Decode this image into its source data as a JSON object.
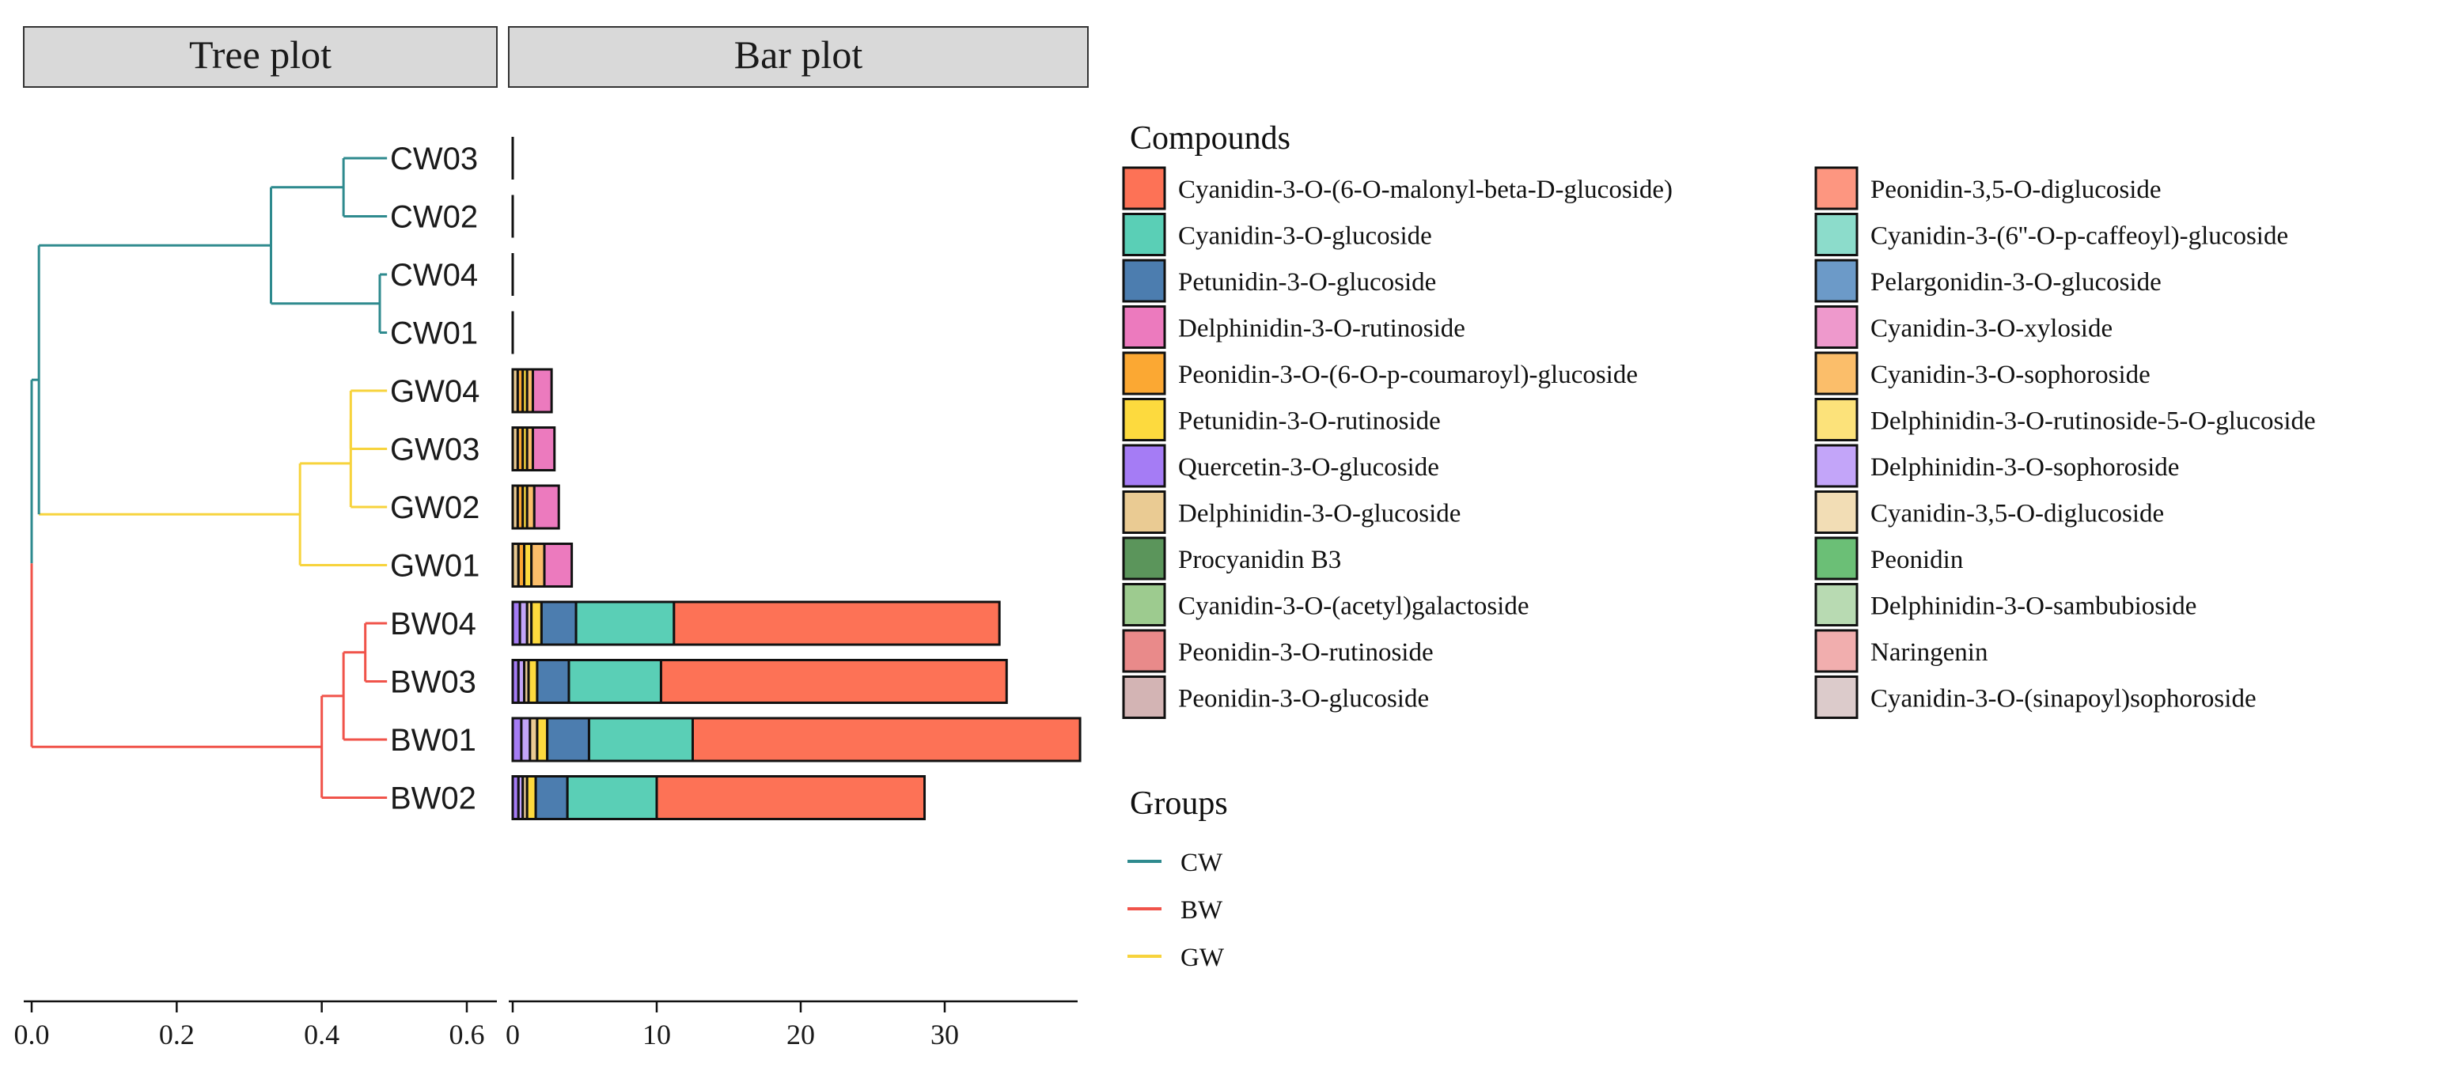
{
  "panels": {
    "tree_label": "Tree plot",
    "bar_label": "Bar plot"
  },
  "chart_data": [
    {
      "type": "dendrogram",
      "title": "Tree plot",
      "x_ticks": [
        "0.0",
        "0.2",
        "0.4",
        "0.6"
      ],
      "xlim": [
        0.0,
        0.62
      ],
      "leaves": [
        "CW03",
        "CW02",
        "CW04",
        "CW01",
        "GW04",
        "GW03",
        "GW02",
        "GW01",
        "BW04",
        "BW03",
        "BW01",
        "BW02"
      ],
      "leaf_x": 0.49,
      "leaf_groups": [
        "CW",
        "CW",
        "CW",
        "CW",
        "GW",
        "GW",
        "GW",
        "GW",
        "BW",
        "BW",
        "BW",
        "BW"
      ],
      "merges": [
        {
          "children": [
            "CW03",
            "CW02"
          ],
          "height": 0.43,
          "group": "CW"
        },
        {
          "children": [
            "CW04",
            "CW01"
          ],
          "height": 0.48,
          "group": "CW"
        },
        {
          "children": [
            "CW03+CW02",
            "CW04+CW01"
          ],
          "height": 0.33,
          "group": "CW"
        },
        {
          "children": [
            "GW04",
            "GW03"
          ],
          "height": 0.44,
          "group": "GW"
        },
        {
          "children": [
            "GW04+GW03",
            "GW02"
          ],
          "height": 0.44,
          "group": "GW"
        },
        {
          "children": [
            "GW04+GW03+GW02",
            "GW01"
          ],
          "height": 0.37,
          "group": "GW"
        },
        {
          "children": [
            "BW04",
            "BW03"
          ],
          "height": 0.46,
          "group": "BW"
        },
        {
          "children": [
            "BW04+BW03",
            "BW01"
          ],
          "height": 0.43,
          "group": "BW"
        },
        {
          "children": [
            "BW04+BW03+BW01",
            "BW02"
          ],
          "height": 0.4,
          "group": "BW"
        },
        {
          "children": [
            "CW",
            "GW"
          ],
          "height": 0.01,
          "group": "CW"
        },
        {
          "children": [
            "CW+GW",
            "BW"
          ],
          "height": 0.0,
          "group": "root"
        }
      ]
    },
    {
      "type": "bar",
      "orientation": "horizontal",
      "stacked": true,
      "title": "Bar plot",
      "x_ticks": [
        "0",
        "10",
        "20",
        "30"
      ],
      "xlim": [
        0,
        39.5
      ],
      "categories": [
        "CW03",
        "CW02",
        "CW04",
        "CW01",
        "GW04",
        "GW03",
        "GW02",
        "GW01",
        "BW04",
        "BW03",
        "BW01",
        "BW02"
      ],
      "series": [
        {
          "name": "Quercetin-3-O-glucoside",
          "color": "#A57CF5",
          "values": [
            0,
            0,
            0,
            0,
            0,
            0,
            0,
            0,
            0.5,
            0.4,
            0.6,
            0.4
          ]
        },
        {
          "name": "Delphinidin-3-O-sophoroside",
          "color": "#C3A5F9",
          "values": [
            0,
            0,
            0,
            0,
            0,
            0,
            0,
            0,
            0.5,
            0.4,
            0.6,
            0.3
          ]
        },
        {
          "name": "Delphinidin-3-O-glucoside",
          "color": "#EACB93",
          "values": [
            0,
            0,
            0,
            0,
            0.35,
            0.35,
            0.35,
            0.4,
            0.3,
            0.3,
            0.5,
            0.3
          ]
        },
        {
          "name": "Peonidin-3-O-(6-O-p-coumaroyl)-glucoside",
          "color": "#FBA833",
          "values": [
            0,
            0,
            0,
            0,
            0.35,
            0.35,
            0.35,
            0.4,
            0,
            0,
            0,
            0
          ]
        },
        {
          "name": "Petunidin-3-O-rutinoside",
          "color": "#FDDA3E",
          "values": [
            0,
            0,
            0,
            0,
            0.3,
            0.3,
            0.3,
            0.5,
            0.7,
            0.6,
            0.7,
            0.6
          ]
        },
        {
          "name": "Cyanidin-3-O-sophoroside",
          "color": "#FBBE6A",
          "values": [
            0,
            0,
            0,
            0,
            0.4,
            0.4,
            0.5,
            0.9,
            0,
            0,
            0,
            0
          ]
        },
        {
          "name": "Petunidin-3-O-glucoside",
          "color": "#4C7DAF",
          "values": [
            0,
            0,
            0,
            0,
            0,
            0,
            0,
            0,
            2.4,
            2.2,
            2.9,
            2.2
          ]
        },
        {
          "name": "Cyanidin-3-O-glucoside",
          "color": "#5ACFB6",
          "values": [
            0,
            0,
            0,
            0,
            0,
            0,
            0,
            0,
            6.8,
            6.4,
            7.2,
            6.2
          ]
        },
        {
          "name": "Delphinidin-3-O-rutinoside",
          "color": "#EC7ABE",
          "values": [
            0,
            0,
            0,
            0,
            1.3,
            1.5,
            1.7,
            1.9,
            0,
            0,
            0,
            0
          ]
        },
        {
          "name": "Cyanidin-3-O-(6-O-malonyl-beta-D-glucoside)",
          "color": "#FD7256",
          "values": [
            0,
            0,
            0,
            0,
            0,
            0,
            0,
            0,
            22.6,
            24.0,
            26.9,
            18.6
          ]
        }
      ]
    }
  ],
  "legend": {
    "compounds_title": "Compounds",
    "compounds": [
      {
        "label": "Cyanidin-3-O-(6-O-malonyl-beta-D-glucoside)",
        "color": "#FD7256"
      },
      {
        "label": "Cyanidin-3-O-glucoside",
        "color": "#5ACFB6"
      },
      {
        "label": "Petunidin-3-O-glucoside",
        "color": "#4C7DAF"
      },
      {
        "label": "Delphinidin-3-O-rutinoside",
        "color": "#EC7ABE"
      },
      {
        "label": "Peonidin-3-O-(6-O-p-coumaroyl)-glucoside",
        "color": "#FBA833"
      },
      {
        "label": "Petunidin-3-O-rutinoside",
        "color": "#FDDA3E"
      },
      {
        "label": "Quercetin-3-O-glucoside",
        "color": "#A57CF5"
      },
      {
        "label": "Delphinidin-3-O-glucoside",
        "color": "#EACB93"
      },
      {
        "label": "Procyanidin B3",
        "color": "#5B955B"
      },
      {
        "label": "Cyanidin-3-O-(acetyl)galactoside",
        "color": "#9DCB8F"
      },
      {
        "label": "Peonidin-3-O-rutinoside",
        "color": "#E98A8A"
      },
      {
        "label": "Peonidin-3-O-glucoside",
        "color": "#D3B4B4"
      },
      {
        "label": "Peonidin-3,5-O-diglucoside",
        "color": "#FD9680"
      },
      {
        "label": "Cyanidin-3-(6''-O-p-caffeoyl)-glucoside",
        "color": "#8CDCCB"
      },
      {
        "label": "Pelargonidin-3-O-glucoside",
        "color": "#6C9AC8"
      },
      {
        "label": "Cyanidin-3-O-xyloside",
        "color": "#EE99CC"
      },
      {
        "label": "Cyanidin-3-O-sophoroside",
        "color": "#FBBE6A"
      },
      {
        "label": "Delphinidin-3-O-rutinoside-5-O-glucoside",
        "color": "#FCE27A"
      },
      {
        "label": "Delphinidin-3-O-sophoroside",
        "color": "#C3A5F9"
      },
      {
        "label": "Cyanidin-3,5-O-diglucoside",
        "color": "#F2DDB5"
      },
      {
        "label": "Peonidin",
        "color": "#6BBF76"
      },
      {
        "label": "Delphinidin-3-O-sambubioside",
        "color": "#B8DAB2"
      },
      {
        "label": "Naringenin",
        "color": "#F1AEAE"
      },
      {
        "label": "Cyanidin-3-O-(sinapoyl)sophoroside",
        "color": "#DCCBCB"
      }
    ],
    "groups_title": "Groups",
    "groups": [
      {
        "label": "CW",
        "color": "#2E8A8E"
      },
      {
        "label": "BW",
        "color": "#F0534A"
      },
      {
        "label": "GW",
        "color": "#F7D33C"
      }
    ]
  },
  "colors": {
    "CW": "#2E8A8E",
    "GW": "#F7D33C",
    "BW": "#F0534A",
    "strip_fill": "#D9D9D9",
    "strip_border": "#333333",
    "bar_outline": "#111111"
  }
}
